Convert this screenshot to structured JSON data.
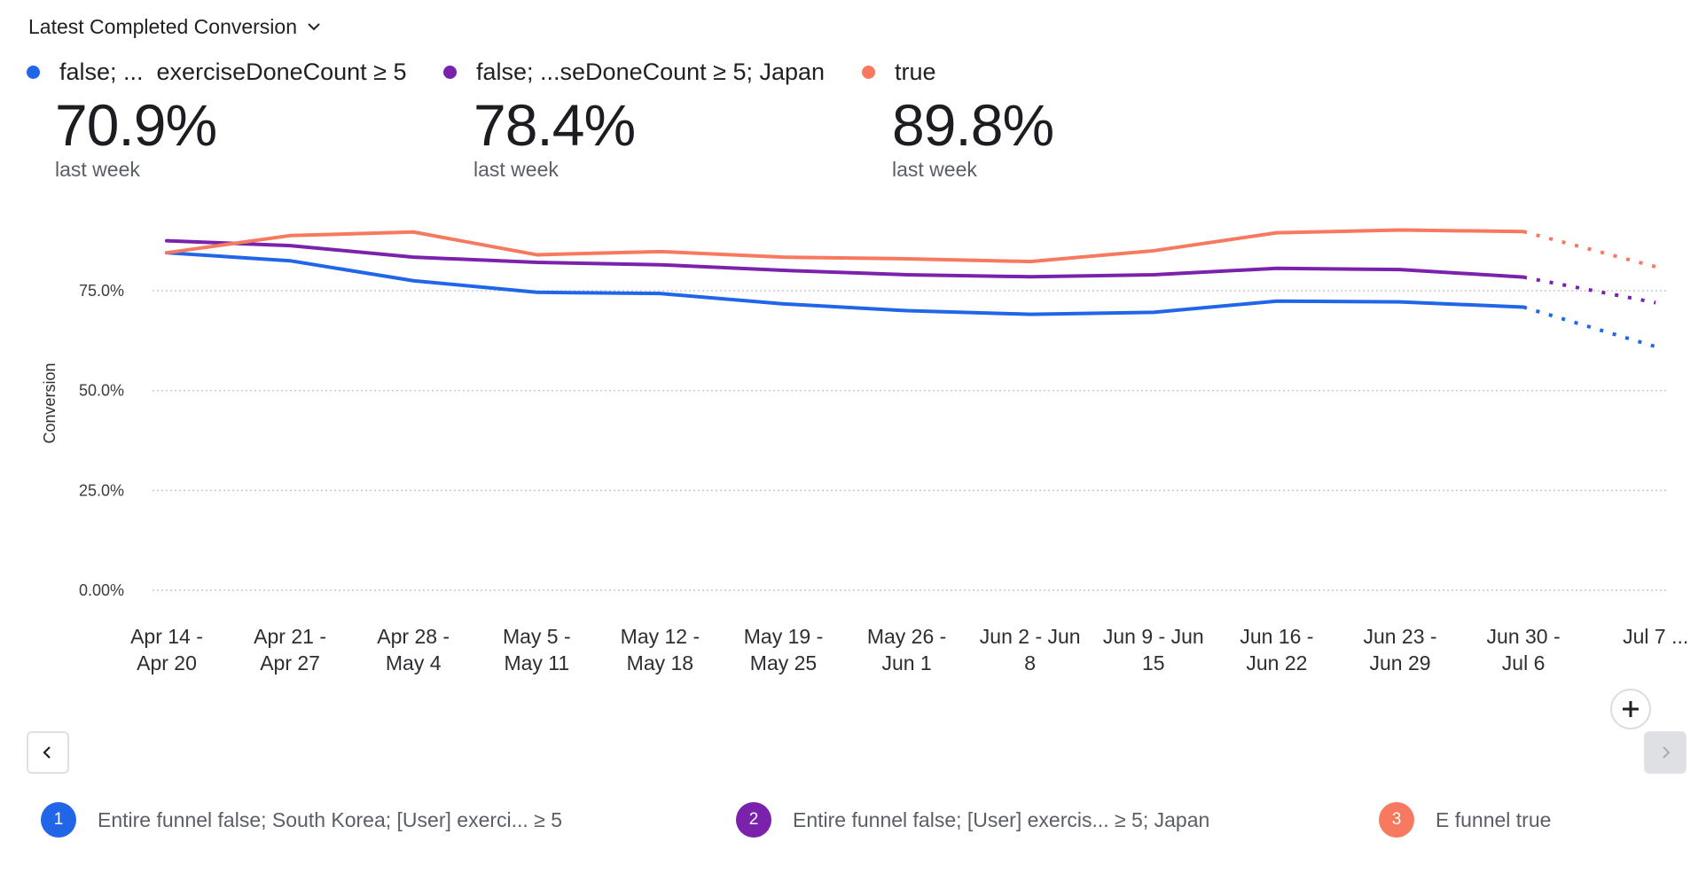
{
  "header": {
    "metric_selector_label": "Latest Completed Conversion",
    "metric_selector_icon": "chevron-down-icon"
  },
  "legend": [
    {
      "label": "false; ...  exerciseDoneCount ≥ 5",
      "color": "#2166e8"
    },
    {
      "label": "false; ...seDoneCount ≥ 5; Japan",
      "color": "#7b22ac"
    },
    {
      "label": "true",
      "color": "#f7795f"
    }
  ],
  "stats": [
    {
      "value": "70.9%",
      "sub": "last week"
    },
    {
      "value": "78.4%",
      "sub": "last week"
    },
    {
      "value": "89.8%",
      "sub": "last week"
    }
  ],
  "chart_data": {
    "type": "line",
    "title": "Latest Completed Conversion",
    "xlabel": "",
    "ylabel": "Conversion",
    "ylim": [
      0,
      100
    ],
    "yticks": [
      0,
      25,
      50,
      75
    ],
    "ytick_labels": [
      "0.00%",
      "25.0%",
      "50.0%",
      "75.0%"
    ],
    "grid": true,
    "legend_position": "top-left",
    "categories": [
      [
        "Apr 14 -",
        "Apr 20"
      ],
      [
        "Apr 21 -",
        "Apr 27"
      ],
      [
        "Apr 28 -",
        "May 4"
      ],
      [
        "May 5 -",
        "May 11"
      ],
      [
        "May 12 -",
        "May 18"
      ],
      [
        "May 19 -",
        "May 25"
      ],
      [
        "May 26 -",
        "Jun 1"
      ],
      [
        "Jun 2 - Jun",
        "8"
      ],
      [
        "Jun 9 - Jun",
        "15"
      ],
      [
        "Jun 16 -",
        "Jun 22"
      ],
      [
        "Jun 23 -",
        "Jun 29"
      ],
      [
        "Jun 30 -",
        "Jul 6"
      ],
      [
        "Jul 7 ...",
        ""
      ]
    ],
    "incomplete_from_index": 11,
    "series": [
      {
        "name": "false; South Korea; [User] exerciseDoneCount ≥ 5",
        "color": "#2166e8",
        "values": [
          84.5,
          82.5,
          77.5,
          74.6,
          74.3,
          71.7,
          70.0,
          69.1,
          69.6,
          72.4,
          72.2,
          70.9,
          61.0
        ]
      },
      {
        "name": "false; [User] exerciseDoneCount ≥ 5; Japan",
        "color": "#7b22ac",
        "values": [
          87.5,
          86.3,
          83.4,
          82.1,
          81.5,
          80.1,
          79.0,
          78.5,
          79.0,
          80.6,
          80.3,
          78.4,
          72.0
        ]
      },
      {
        "name": "true",
        "color": "#f7795f",
        "values": [
          84.5,
          88.8,
          89.7,
          84.0,
          84.8,
          83.4,
          83.0,
          82.3,
          85.0,
          89.5,
          90.2,
          89.8,
          81.0
        ]
      }
    ]
  },
  "controls": {
    "zoom_icon": "plus-icon",
    "prev_icon": "chevron-left-icon",
    "next_icon": "chevron-right-icon"
  },
  "footer": [
    {
      "number": "1",
      "label": "Entire funnel false; South Korea; [User] exerci... ≥ 5",
      "color": "#2166e8"
    },
    {
      "number": "2",
      "label": "Entire funnel false; [User] exercis... ≥ 5; Japan",
      "color": "#7b22ac"
    },
    {
      "number": "3",
      "label": "E funnel true",
      "color": "#f7795f"
    }
  ]
}
